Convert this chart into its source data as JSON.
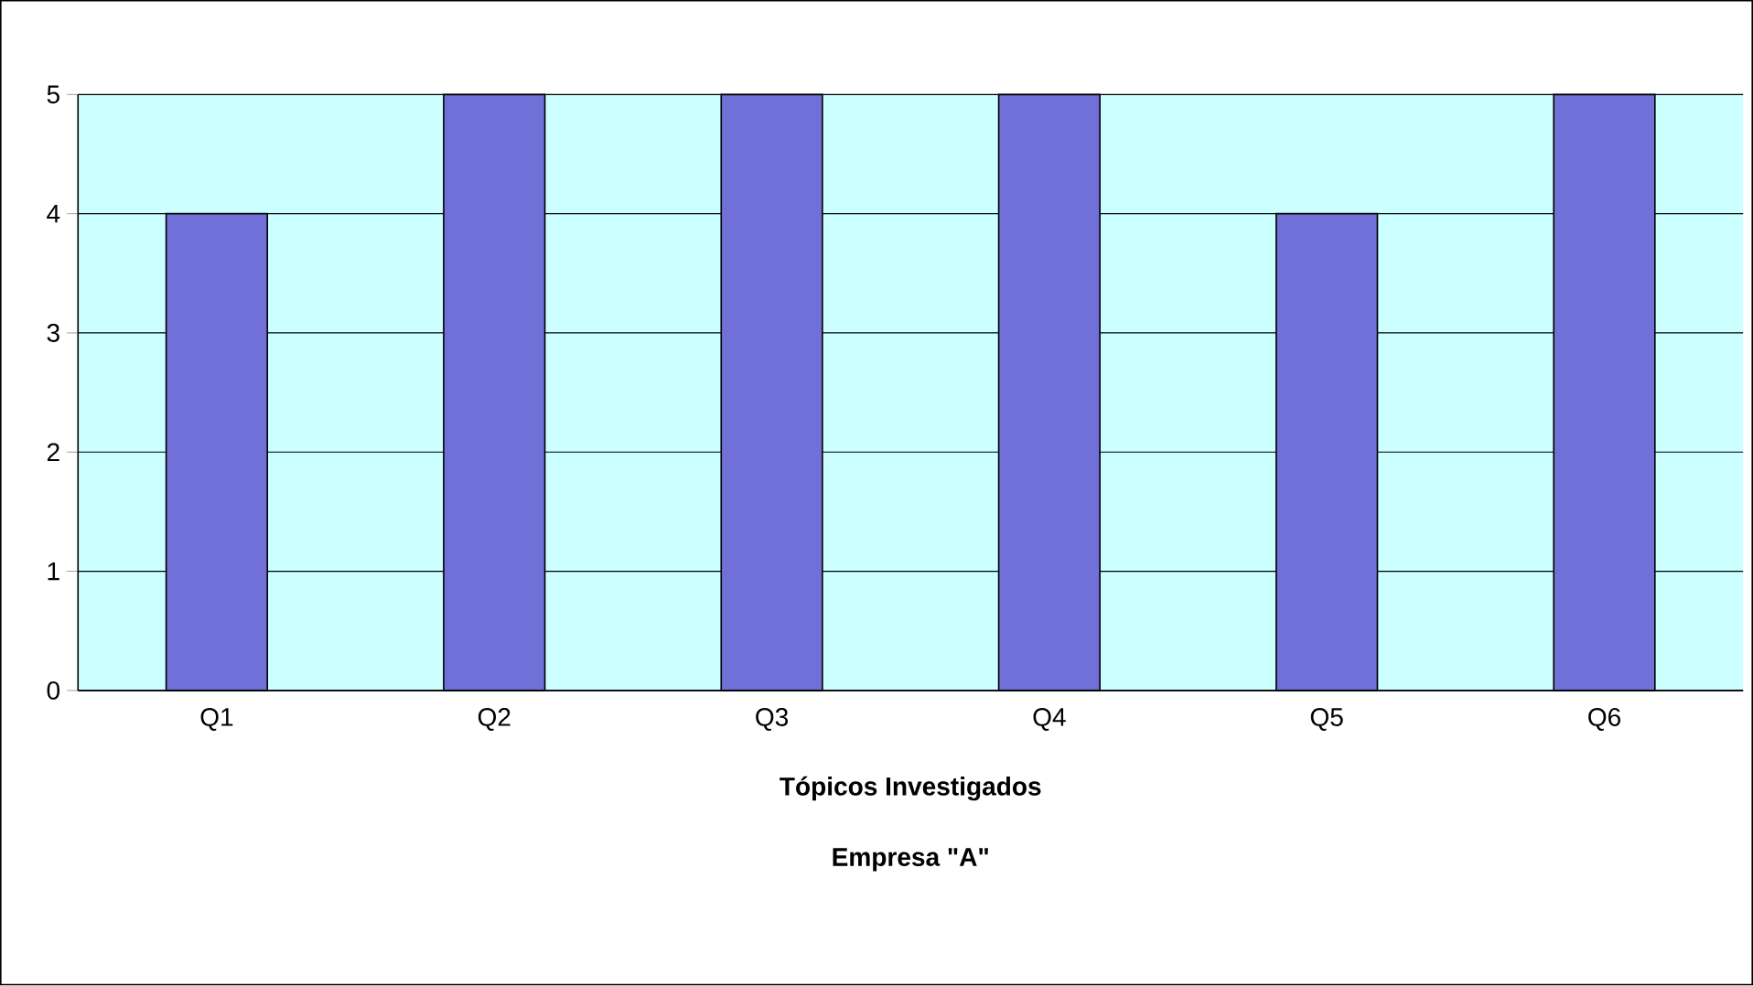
{
  "chart_data": {
    "type": "bar",
    "xlabel": "Tópicos Investigados",
    "annotations": [
      "Empresa \"A\""
    ],
    "categories": [
      "Q1",
      "Q2",
      "Q3",
      "Q4",
      "Q5",
      "Q6"
    ],
    "values": [
      4,
      5,
      5,
      5,
      4,
      5
    ],
    "color": "#7070d8",
    "ylim": [
      0,
      5
    ],
    "yticks": [
      0,
      1,
      2,
      3,
      4,
      5
    ],
    "grid": "y"
  }
}
